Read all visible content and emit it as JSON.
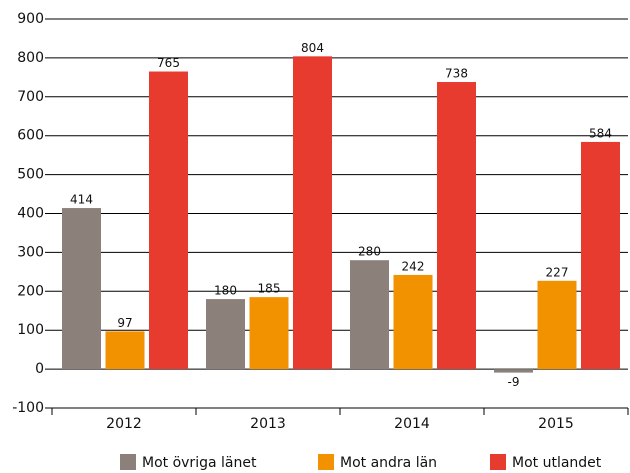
{
  "chart_data": {
    "type": "bar",
    "categories": [
      "2012",
      "2013",
      "2014",
      "2015"
    ],
    "series": [
      {
        "name": "Mot övriga länet",
        "color": "#8c817a",
        "values": [
          414,
          180,
          280,
          -9
        ]
      },
      {
        "name": "Mot andra län",
        "color": "#f39200",
        "values": [
          97,
          185,
          242,
          227
        ]
      },
      {
        "name": "Mot utlandet",
        "color": "#e63b2e",
        "values": [
          765,
          804,
          738,
          584
        ]
      }
    ],
    "ylim": [
      -100,
      900
    ],
    "yticks": [
      -100,
      0,
      100,
      200,
      300,
      400,
      500,
      600,
      700,
      800,
      900
    ],
    "grid": true,
    "legend": "bottom"
  }
}
